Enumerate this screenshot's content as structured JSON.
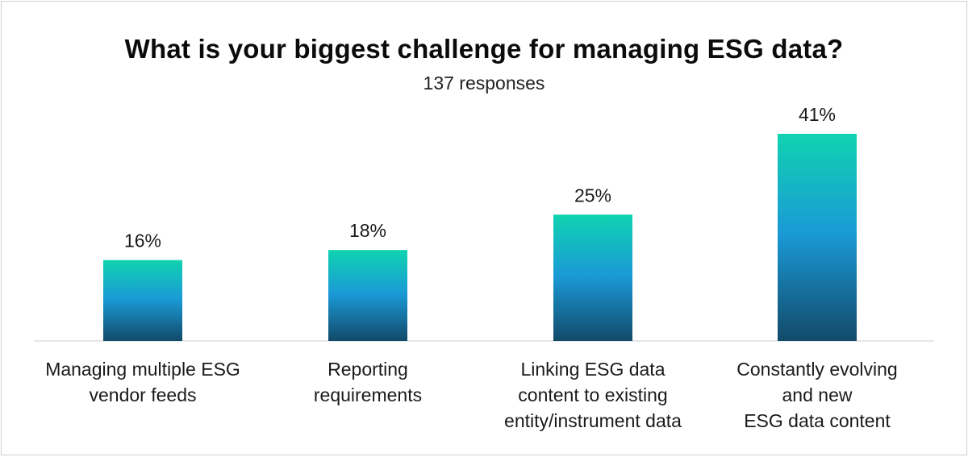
{
  "chart_data": {
    "type": "bar",
    "title": "What is your biggest challenge for managing ESG data?",
    "subtitle": "137 responses",
    "categories": [
      "Managing multiple ESG\nvendor feeds",
      "Reporting\nrequirements",
      "Linking ESG data\ncontent to existing\nentity/instrument data",
      "Constantly evolving\nand new\nESG data content"
    ],
    "values": [
      16,
      18,
      25,
      41
    ],
    "value_labels": [
      "16%",
      "18%",
      "25%",
      "41%"
    ],
    "ylim": [
      0,
      41
    ],
    "grid": false,
    "legend": "none",
    "colors": {
      "bar_top": "#10d3b0",
      "bar_mid": "#1a9ad6",
      "bar_bottom": "#124a6a",
      "baseline": "#cccccc"
    }
  }
}
